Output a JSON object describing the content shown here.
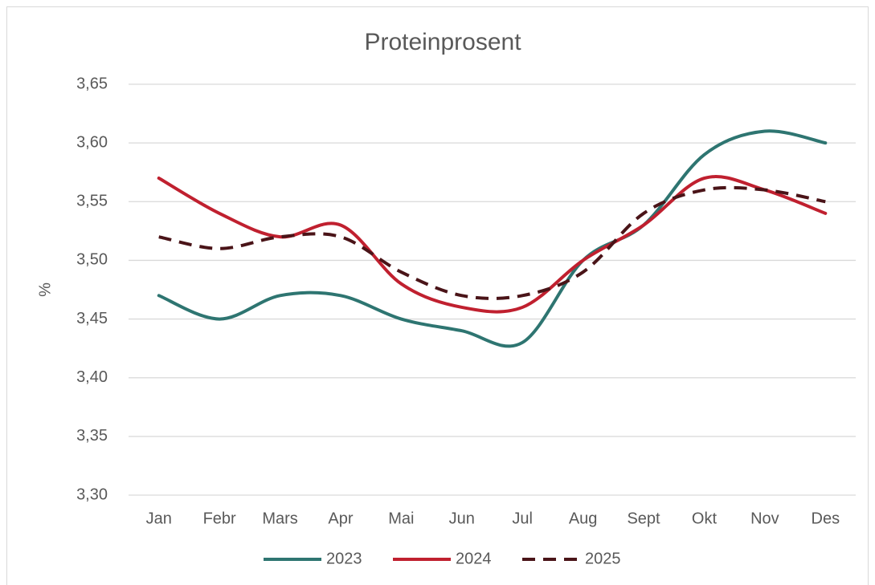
{
  "chart_data": {
    "type": "line",
    "title": "Proteinprosent",
    "y_label": "%",
    "categories": [
      "Jan",
      "Febr",
      "Mars",
      "Apr",
      "Mai",
      "Jun",
      "Jul",
      "Aug",
      "Sept",
      "Okt",
      "Nov",
      "Des"
    ],
    "series": [
      {
        "name": "2023",
        "color": "#2e7571",
        "dashed": false,
        "values": [
          3.47,
          3.45,
          3.47,
          3.47,
          3.45,
          3.44,
          3.43,
          3.5,
          3.53,
          3.59,
          3.61,
          3.6
        ]
      },
      {
        "name": "2024",
        "color": "#c0202f",
        "dashed": false,
        "values": [
          3.57,
          3.54,
          3.52,
          3.53,
          3.48,
          3.46,
          3.46,
          3.5,
          3.53,
          3.57,
          3.56,
          3.54
        ]
      },
      {
        "name": "2025",
        "color": "#4a1418",
        "dashed": true,
        "values": [
          3.52,
          3.51,
          3.52,
          3.52,
          3.49,
          3.47,
          3.47,
          3.49,
          3.54,
          3.56,
          3.56,
          3.55
        ]
      }
    ],
    "ylim": [
      3.3,
      3.65
    ],
    "yticks": [
      {
        "value": 3.3,
        "label": "3,30"
      },
      {
        "value": 3.35,
        "label": "3,35"
      },
      {
        "value": 3.4,
        "label": "3,40"
      },
      {
        "value": 3.45,
        "label": "3,45"
      },
      {
        "value": 3.5,
        "label": "3,50"
      },
      {
        "value": 3.55,
        "label": "3,55"
      },
      {
        "value": 3.6,
        "label": "3,60"
      },
      {
        "value": 3.65,
        "label": "3,65"
      }
    ],
    "grid": true,
    "smooth": true,
    "legend": "bottom"
  }
}
